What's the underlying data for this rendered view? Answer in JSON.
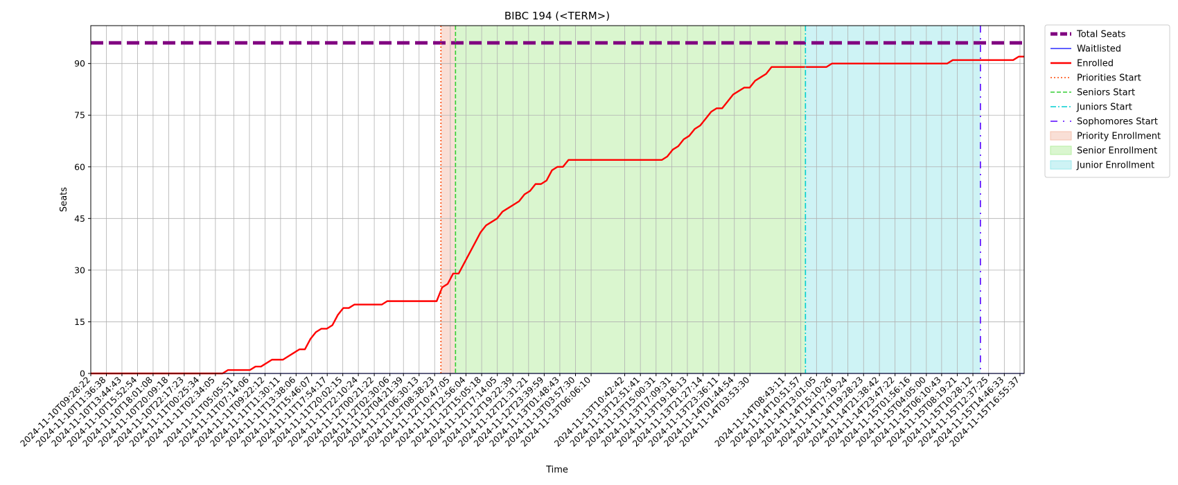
{
  "chart_data": {
    "type": "line",
    "title": "BIBC 194 (<TERM>)",
    "xlabel": "Time",
    "ylabel": "Seats",
    "ylim": [
      0,
      101
    ],
    "y_ticks": [
      0,
      15,
      30,
      45,
      60,
      75,
      90
    ],
    "grid": true,
    "legend_position": "outside-right",
    "x_start": "2024-11-10T09:28:22",
    "x_end": "2024-11-15T17:30:00",
    "x_tick_labels": [
      "2024-11-10T09:28:22",
      "2024-11-10T11:36:38",
      "2024-11-10T13:44:43",
      "2024-11-10T15:52:54",
      "2024-11-10T18:01:08",
      "2024-11-10T20:09:18",
      "2024-11-10T22:17:23",
      "2024-11-11T00:25:34",
      "2024-11-11T02:34:05",
      "2024-11-11T05:05:51",
      "2024-11-11T07:14:06",
      "2024-11-11T09:22:12",
      "2024-11-11T11:30:11",
      "2024-11-11T13:38:06",
      "2024-11-11T15:46:07",
      "2024-11-11T17:54:17",
      "2024-11-11T20:02:15",
      "2024-11-11T22:10:24",
      "2024-11-12T00:21:22",
      "2024-11-12T02:30:06",
      "2024-11-12T04:21:39",
      "2024-11-12T06:30:13",
      "2024-11-12T08:38:23",
      "2024-11-12T10:47:05",
      "2024-11-12T12:56:04",
      "2024-11-12T15:05:18",
      "2024-11-12T17:14:05",
      "2024-11-12T19:22:39",
      "2024-11-12T21:31:21",
      "2024-11-12T23:39:59",
      "2024-11-13T01:48:43",
      "2024-11-13T03:57:30",
      "2024-11-13T06:06:10",
      "2024-11-13T10:42:42",
      "2024-11-13T12:51:41",
      "2024-11-13T15:00:31",
      "2024-11-13T17:09:31",
      "2024-11-13T19:18:13",
      "2024-11-13T21:27:14",
      "2024-11-13T23:36:11",
      "2024-11-14T01:44:54",
      "2024-11-14T03:53:30",
      "2024-11-14T08:43:11",
      "2024-11-14T10:51:57",
      "2024-11-14T13:01:05",
      "2024-11-14T15:10:26",
      "2024-11-14T17:19:24",
      "2024-11-14T19:28:23",
      "2024-11-14T21:38:42",
      "2024-11-14T23:47:22",
      "2024-11-15T01:56:16",
      "2024-11-15T04:05:00",
      "2024-11-15T06:10:43",
      "2024-11-15T08:19:21",
      "2024-11-15T10:28:12",
      "2024-11-15T12:37:25",
      "2024-11-15T14:46:33",
      "2024-11-15T16:55:37"
    ],
    "series": [
      {
        "name": "Total Seats",
        "style": "dashed-thick",
        "color": "#800080",
        "values": [
          96,
          96,
          96
        ]
      },
      {
        "name": "Waitlisted",
        "style": "solid-thin",
        "color": "#0000ff",
        "values": [
          0,
          0,
          0
        ]
      },
      {
        "name": "Enrolled",
        "style": "solid",
        "color": "#ff0000",
        "values": [
          0,
          0,
          0,
          0,
          0,
          0,
          0,
          0,
          0,
          0,
          0,
          0,
          0,
          0,
          0,
          0,
          0,
          0,
          0,
          0,
          0,
          0,
          0,
          0,
          0,
          1,
          1,
          1,
          1,
          1,
          2,
          2,
          3,
          4,
          4,
          4,
          5,
          6,
          7,
          7,
          10,
          12,
          13,
          13,
          14,
          17,
          19,
          19,
          20,
          20,
          20,
          20,
          20,
          20,
          21,
          21,
          21,
          21,
          21,
          21,
          21,
          21,
          21,
          21,
          25,
          26,
          29,
          29,
          32,
          35,
          38,
          41,
          43,
          44,
          45,
          47,
          48,
          49,
          50,
          52,
          53,
          55,
          55,
          56,
          59,
          60,
          60,
          62,
          62,
          62,
          62,
          62,
          62,
          62,
          62,
          62,
          62,
          62,
          62,
          62,
          62,
          62,
          62,
          62,
          62,
          63,
          65,
          66,
          68,
          69,
          71,
          72,
          74,
          76,
          77,
          77,
          79,
          81,
          82,
          83,
          83,
          85,
          86,
          87,
          89,
          89,
          89,
          89,
          89,
          89,
          89,
          89,
          89,
          89,
          89,
          90,
          90,
          90,
          90,
          90,
          90,
          90,
          90,
          90,
          90,
          90,
          90,
          90,
          90,
          90,
          90,
          90,
          90,
          90,
          90,
          90,
          90,
          91,
          91,
          91,
          91,
          91,
          91,
          91,
          91,
          91,
          91,
          91,
          91,
          92,
          92
        ]
      }
    ],
    "markers": [
      {
        "name": "Priorities Start",
        "time": "2024-11-12T09:30:00",
        "color": "#ff4500",
        "style": "dotted"
      },
      {
        "name": "Seniors Start",
        "time": "2024-11-12T11:30:00",
        "color": "#32cd32",
        "style": "dashed"
      },
      {
        "name": "Juniors Start",
        "time": "2024-11-14T11:30:00",
        "color": "#00ced1",
        "style": "dashdot"
      },
      {
        "name": "Sophomores Start",
        "time": "2024-11-15T11:30:00",
        "color": "#5500ff",
        "style": "dashdot-loose"
      }
    ],
    "spans": [
      {
        "name": "Priority Enrollment",
        "from": "2024-11-12T09:30:00",
        "to": "2024-11-12T11:30:00",
        "color": "#f4c0ad"
      },
      {
        "name": "Senior Enrollment",
        "from": "2024-11-12T11:30:00",
        "to": "2024-11-14T11:30:00",
        "color": "#b5eea0"
      },
      {
        "name": "Junior Enrollment",
        "from": "2024-11-14T11:30:00",
        "to": "2024-11-15T11:30:00",
        "color": "#9ee8ec"
      }
    ]
  }
}
